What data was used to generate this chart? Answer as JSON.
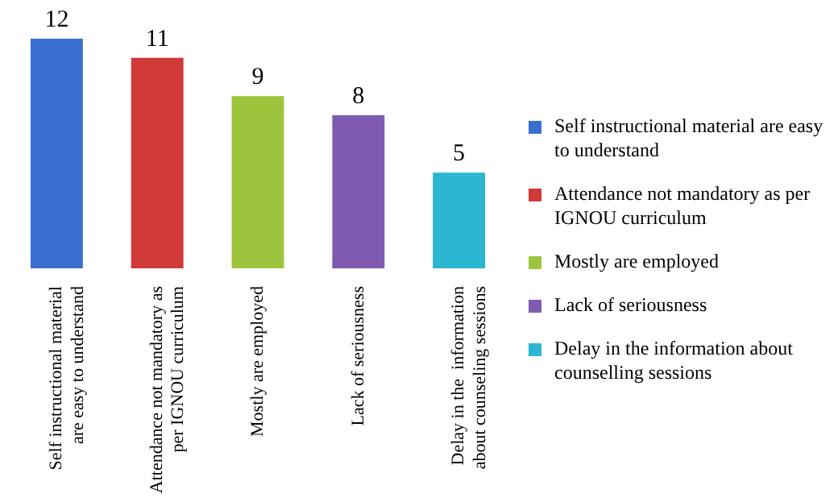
{
  "chart_data": {
    "type": "bar",
    "categories": [
      "Self instructional material are easy to understand",
      "Attendance not mandatory as per IGNOU curriculum",
      "Mostly are employed",
      "Lack of seriousness",
      "Delay in the  information about counseling sessions"
    ],
    "series": [
      {
        "name": "Self instructional material are easy to understand",
        "color": "#3a6fd0",
        "values": [
          12,
          null,
          null,
          null,
          null
        ]
      },
      {
        "name": "Attendance not mandatory as per IGNOU curriculum",
        "color": "#d23a3a",
        "values": [
          null,
          11,
          null,
          null,
          null
        ]
      },
      {
        "name": "Mostly are employed",
        "color": "#9cc43c",
        "values": [
          null,
          null,
          9,
          null,
          null
        ]
      },
      {
        "name": "Lack of seriousness",
        "color": "#7e5bb0",
        "values": [
          null,
          null,
          null,
          8,
          null
        ]
      },
      {
        "name": "Delay in the  information about counselling sessions",
        "color": "#2bb6d2",
        "values": [
          null,
          null,
          null,
          null,
          5
        ]
      }
    ],
    "stacked": true,
    "data_labels": true,
    "legend": "right",
    "grid": false
  }
}
